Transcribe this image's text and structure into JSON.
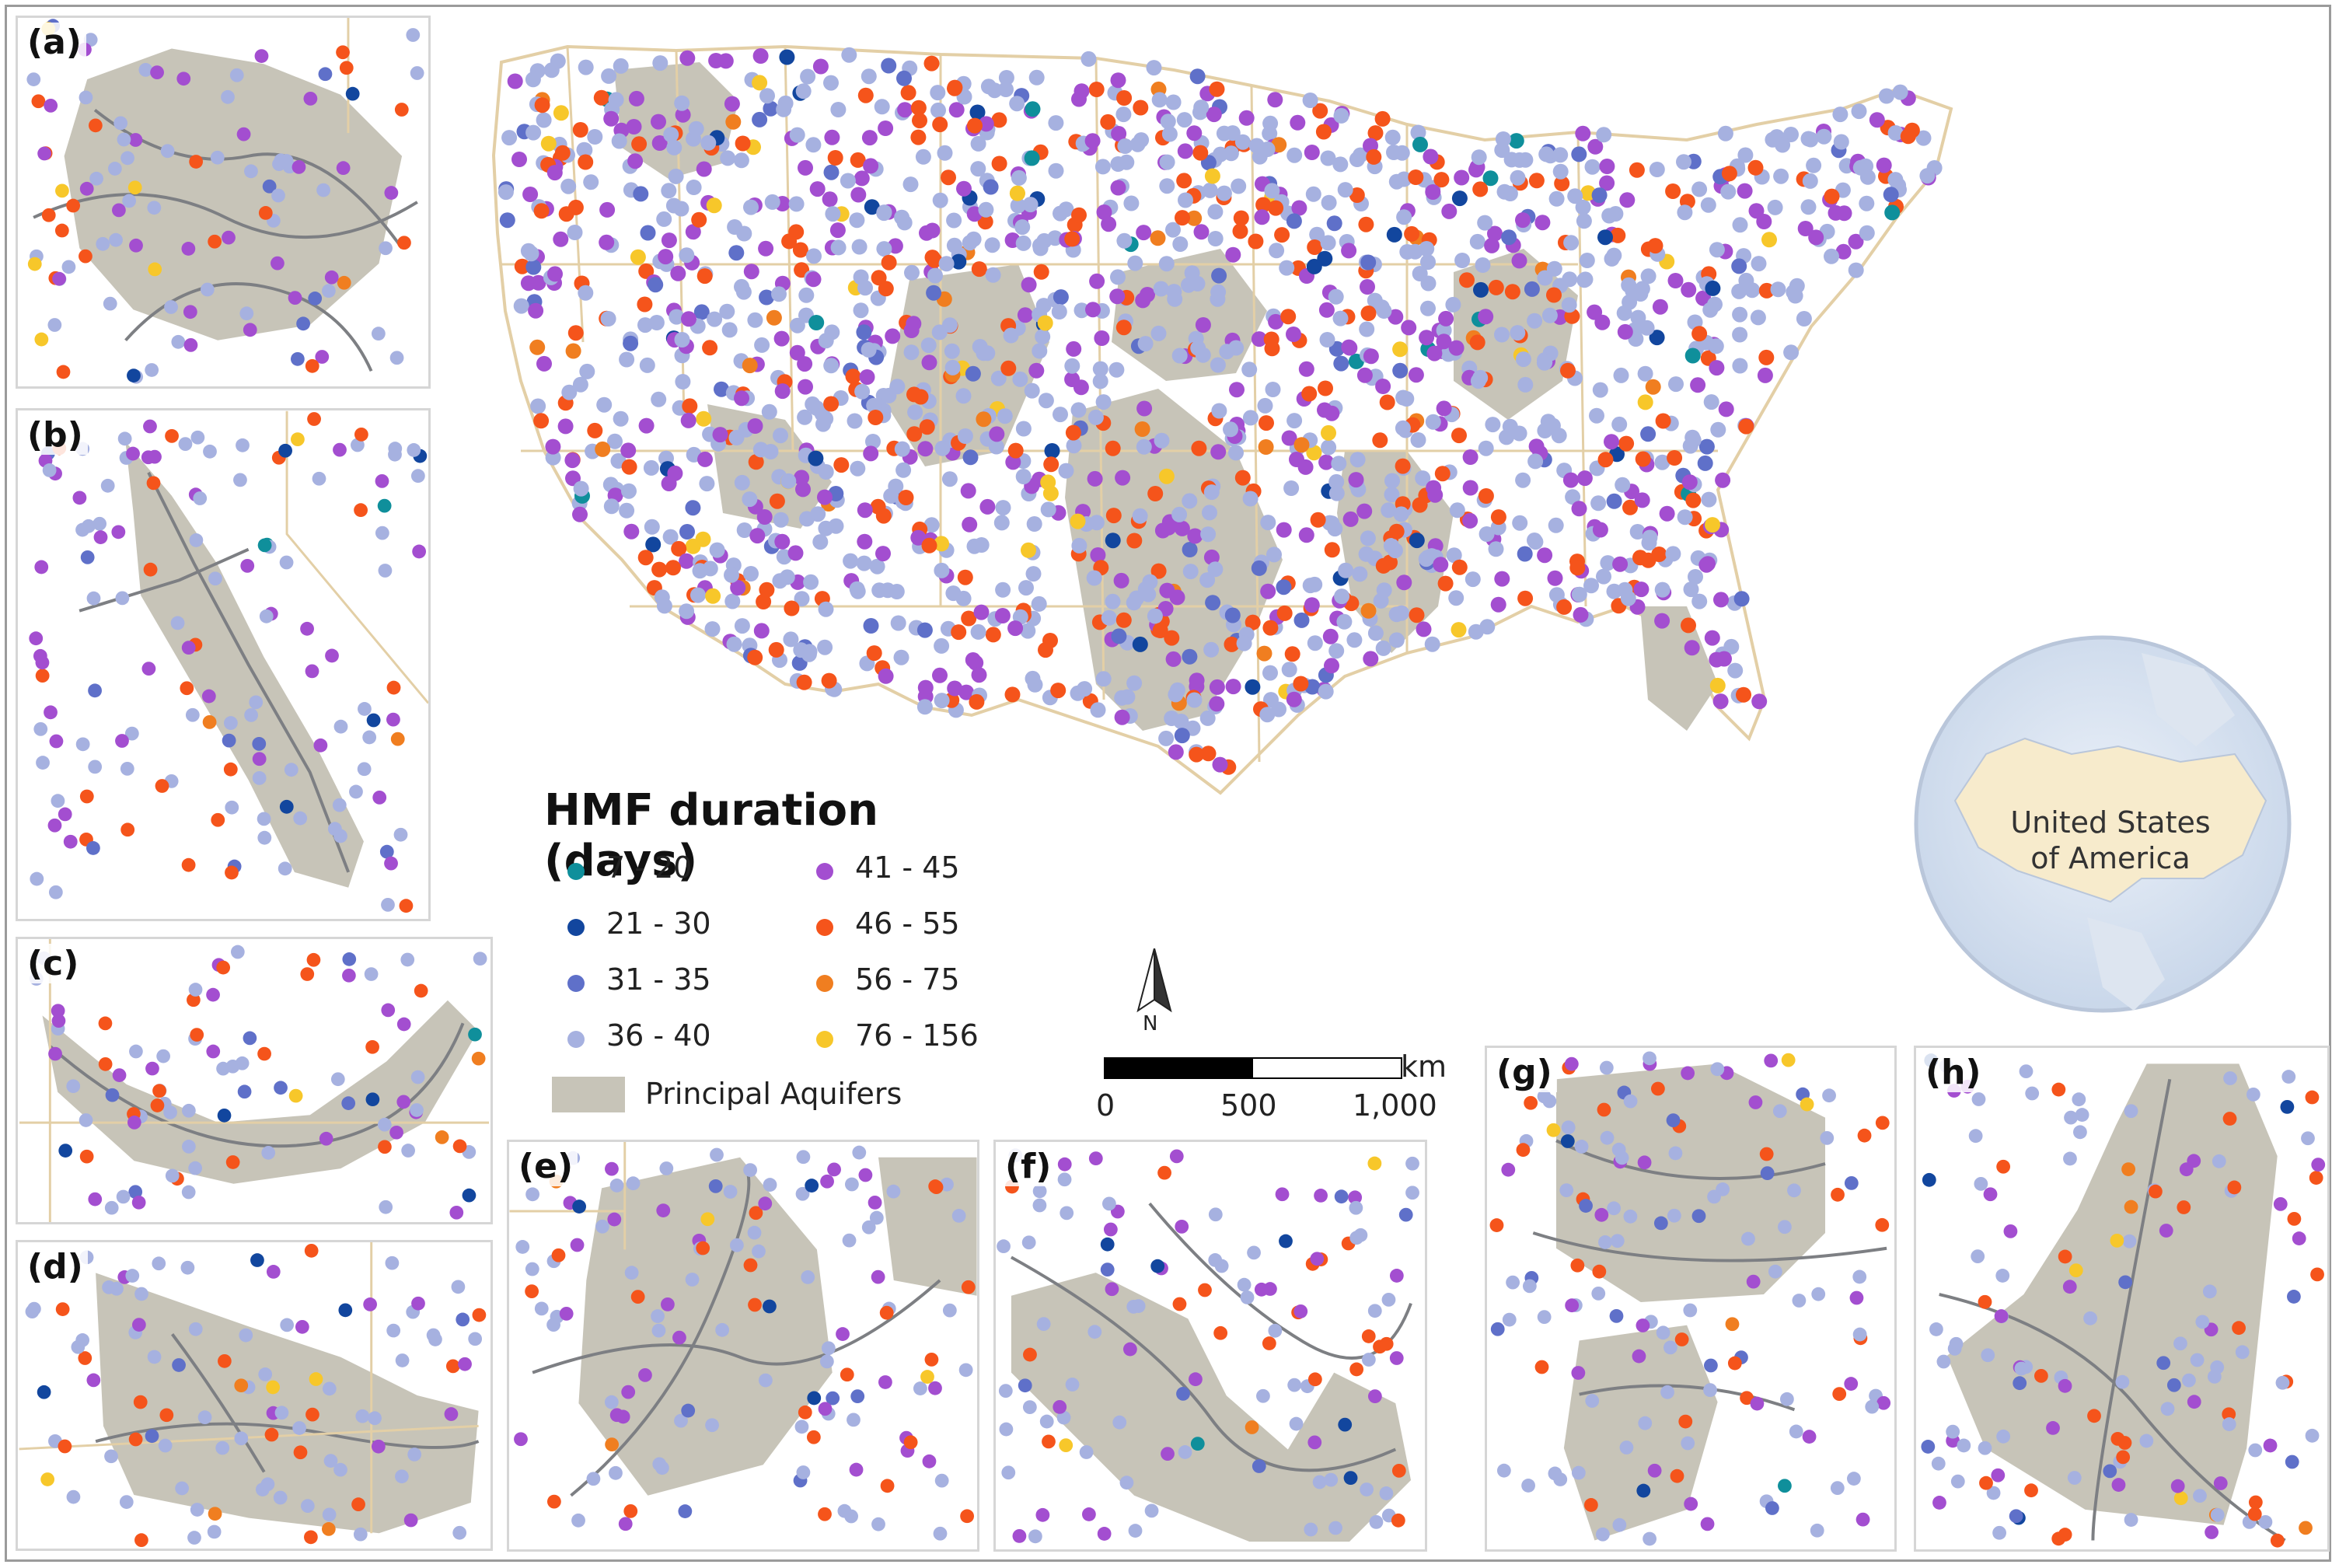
{
  "legend": {
    "title": "HMF duration (days)",
    "classes": [
      {
        "label": "7 - 20",
        "color": "#0f8f9b"
      },
      {
        "label": "21 - 30",
        "color": "#12469e"
      },
      {
        "label": "31 - 35",
        "color": "#5f70c9"
      },
      {
        "label": "36 - 40",
        "color": "#a6b1e0"
      },
      {
        "label": "41 - 45",
        "color": "#a34ed0"
      },
      {
        "label": "46 - 55",
        "color": "#f5541b"
      },
      {
        "label": "56 - 75",
        "color": "#f07e20"
      },
      {
        "label": "76 - 156",
        "color": "#f7c72a"
      }
    ],
    "aquifer_label": "Principal Aquifers",
    "aquifer_color": "#c7c4b8"
  },
  "scalebar": {
    "unit": "km",
    "ticks": [
      "0",
      "500",
      "1,000"
    ]
  },
  "north_arrow": {
    "label": "N"
  },
  "globe_label": [
    "United States",
    "of America"
  ],
  "panels": [
    "(a)",
    "(b)",
    "(c)",
    "(d)",
    "(e)",
    "(f)",
    "(g)",
    "(h)"
  ],
  "colors": {
    "state_border": "#e3cfa6",
    "river": "#7d7f83",
    "land": "#ffffff"
  }
}
